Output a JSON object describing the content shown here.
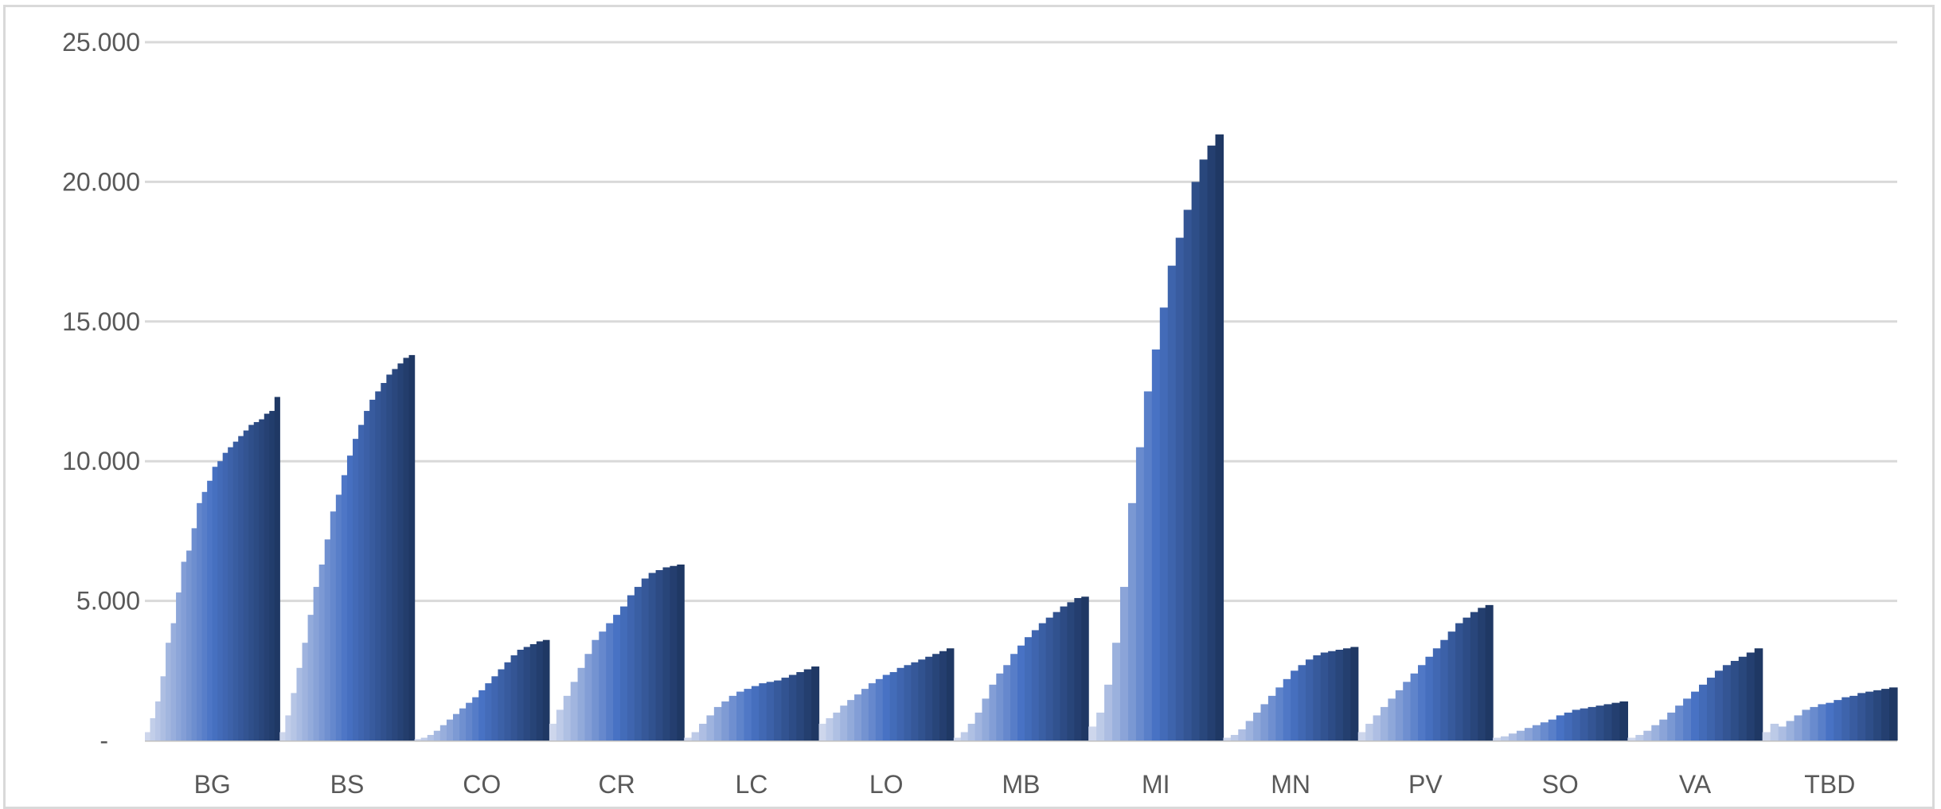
{
  "chart_data": {
    "type": "bar",
    "title": "",
    "xlabel": "",
    "ylabel": "",
    "ylim": [
      0,
      25000
    ],
    "yticks": [
      0,
      5000,
      10000,
      15000,
      20000,
      25000
    ],
    "ytick_labels": [
      "-",
      "5.000",
      "10.000",
      "15.000",
      "20.000",
      "25.000"
    ],
    "grid": true,
    "legend": "none",
    "categories": [
      "BG",
      "BS",
      "CO",
      "CR",
      "LC",
      "LO",
      "MB",
      "MI",
      "MN",
      "PV",
      "SO",
      "VA",
      "TBD"
    ],
    "series_description": "each category shows a cumulative daily series (bars growing left to right)",
    "values": [
      [
        300,
        800,
        1400,
        2300,
        3500,
        4200,
        5300,
        6400,
        6800,
        7600,
        8500,
        8900,
        9300,
        9800,
        10000,
        10300,
        10500,
        10700,
        10900,
        11100,
        11300,
        11400,
        11500,
        11700,
        11800,
        12300
      ],
      [
        300,
        900,
        1700,
        2600,
        3500,
        4500,
        5500,
        6300,
        7200,
        8200,
        8800,
        9500,
        10200,
        10800,
        11300,
        11800,
        12200,
        12500,
        12800,
        13100,
        13300,
        13500,
        13700,
        13800
      ],
      [
        50,
        100,
        200,
        350,
        550,
        750,
        950,
        1150,
        1350,
        1550,
        1800,
        2050,
        2300,
        2550,
        2800,
        3050,
        3250,
        3350,
        3450,
        3550,
        3600
      ],
      [
        600,
        1100,
        1600,
        2100,
        2600,
        3100,
        3600,
        3900,
        4200,
        4500,
        4800,
        5200,
        5500,
        5800,
        6000,
        6100,
        6200,
        6250,
        6300
      ],
      [
        100,
        300,
        600,
        900,
        1200,
        1400,
        1600,
        1750,
        1850,
        1950,
        2050,
        2100,
        2150,
        2250,
        2350,
        2450,
        2550,
        2650
      ],
      [
        600,
        800,
        1000,
        1250,
        1450,
        1650,
        1850,
        2050,
        2200,
        2350,
        2450,
        2600,
        2700,
        2800,
        2900,
        3000,
        3100,
        3200,
        3300
      ],
      [
        100,
        300,
        600,
        1000,
        1500,
        2000,
        2400,
        2700,
        3100,
        3400,
        3700,
        3950,
        4200,
        4400,
        4600,
        4800,
        4950,
        5100,
        5150
      ],
      [
        500,
        1000,
        2000,
        3500,
        5500,
        8500,
        10500,
        12500,
        14000,
        15500,
        17000,
        18000,
        19000,
        20000,
        20800,
        21300,
        21700
      ],
      [
        100,
        200,
        400,
        700,
        1000,
        1300,
        1600,
        1900,
        2200,
        2500,
        2700,
        2900,
        3050,
        3150,
        3200,
        3250,
        3300,
        3350
      ],
      [
        300,
        600,
        900,
        1200,
        1500,
        1800,
        2100,
        2400,
        2700,
        3000,
        3300,
        3600,
        3900,
        4200,
        4400,
        4600,
        4750,
        4850
      ],
      [
        100,
        150,
        250,
        350,
        450,
        550,
        650,
        750,
        900,
        1000,
        1100,
        1150,
        1200,
        1250,
        1300,
        1350,
        1400
      ],
      [
        100,
        200,
        350,
        550,
        750,
        1000,
        1250,
        1500,
        1750,
        2000,
        2250,
        2500,
        2700,
        2850,
        3000,
        3150,
        3300
      ],
      [
        300,
        600,
        500,
        700,
        900,
        1100,
        1200,
        1300,
        1350,
        1450,
        1550,
        1600,
        1700,
        1750,
        1800,
        1850,
        1900
      ]
    ]
  }
}
